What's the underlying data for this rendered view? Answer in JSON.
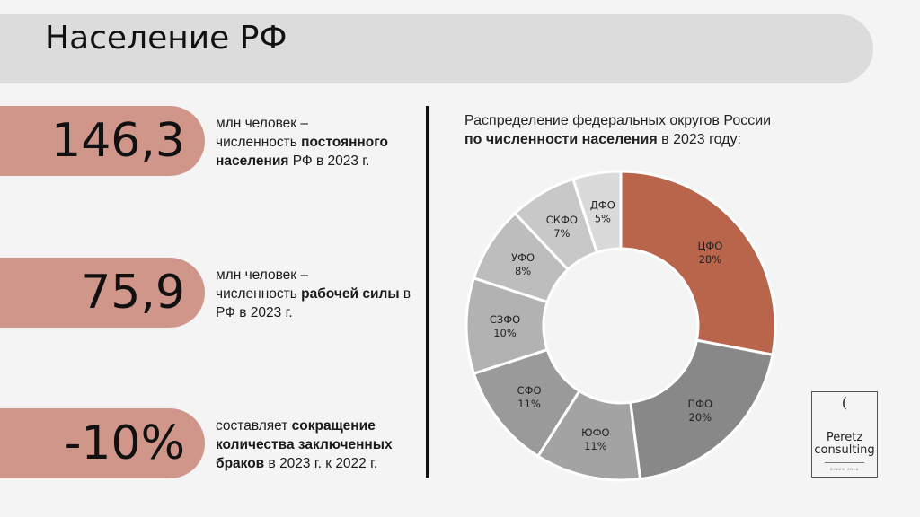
{
  "header": {
    "title": "Население РФ"
  },
  "stats": [
    {
      "value": "146,3",
      "line1": "млн человек –",
      "pre": "численность ",
      "bold": "постоянного населения",
      "post": " РФ в 2023 г."
    },
    {
      "value": "75,9",
      "line1": "млн человек –",
      "pre": "численность ",
      "bold": "рабочей силы",
      "post": " в РФ в 2023 г."
    },
    {
      "value": "-10%",
      "line1": "",
      "pre": "составляет ",
      "bold": "сокращение количества заключенных браков",
      "post": " в 2023 г. к 2022 г."
    }
  ],
  "chart_title": {
    "line1": "Распределение федеральных округов России",
    "bold": "по численности населения",
    "post": " в 2023 году:"
  },
  "chart_data": {
    "type": "pie",
    "categories": [
      "ЦФО",
      "ПФО",
      "ЮФО",
      "СФО",
      "СЗФО",
      "УФО",
      "СКФО",
      "ДФО"
    ],
    "values": [
      28,
      20,
      11,
      11,
      10,
      8,
      7,
      5
    ],
    "value_labels": [
      "28%",
      "20%",
      "11%",
      "11%",
      "10%",
      "8%",
      "7%",
      "5%"
    ],
    "colors": [
      "#b8654c",
      "#888888",
      "#a3a3a3",
      "#9a9a9a",
      "#b2b2b2",
      "#bdbdbd",
      "#c8c8c8",
      "#dadada"
    ],
    "hole": "donut"
  },
  "logo": {
    "mark": "(",
    "name": "Peretz consulting",
    "since": "SINCE 2016"
  }
}
